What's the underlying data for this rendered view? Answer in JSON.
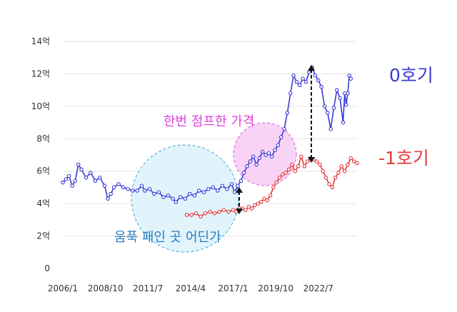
{
  "chart_data": {
    "type": "line",
    "ylim": [
      0,
      14
    ],
    "y_ticks": [
      {
        "value": 0,
        "label": "0"
      },
      {
        "value": 2,
        "label": "2억"
      },
      {
        "value": 4,
        "label": "4억"
      },
      {
        "value": 6,
        "label": "6억"
      },
      {
        "value": 8,
        "label": "8억"
      },
      {
        "value": 10,
        "label": "10억"
      },
      {
        "value": 12,
        "label": "12억"
      },
      {
        "value": 14,
        "label": "14억"
      }
    ],
    "x_range": [
      2006.0,
      2025.0
    ],
    "x_ticks": [
      {
        "value": 2006.0,
        "label": "2006/1"
      },
      {
        "value": 2008.75,
        "label": "2008/10"
      },
      {
        "value": 2011.5,
        "label": "2011/7"
      },
      {
        "value": 2014.25,
        "label": "2014/4"
      },
      {
        "value": 2017.0,
        "label": "2017/1"
      },
      {
        "value": 2019.75,
        "label": "2019/10"
      },
      {
        "value": 2022.5,
        "label": "2022/7"
      }
    ],
    "grid": "horizontal",
    "series": [
      {
        "name": "0호기",
        "color": "#3a3ad6",
        "points": [
          [
            2006.0,
            5.3
          ],
          [
            2006.2,
            5.5
          ],
          [
            2006.4,
            5.7
          ],
          [
            2006.6,
            5.1
          ],
          [
            2006.8,
            5.4
          ],
          [
            2007.0,
            6.4
          ],
          [
            2007.2,
            6.1
          ],
          [
            2007.5,
            5.6
          ],
          [
            2007.8,
            5.9
          ],
          [
            2008.1,
            5.4
          ],
          [
            2008.4,
            5.6
          ],
          [
            2008.7,
            5.1
          ],
          [
            2008.9,
            4.3
          ],
          [
            2009.1,
            4.6
          ],
          [
            2009.3,
            5.0
          ],
          [
            2009.6,
            5.2
          ],
          [
            2009.9,
            5.0
          ],
          [
            2010.2,
            4.9
          ],
          [
            2010.5,
            4.8
          ],
          [
            2010.8,
            4.8
          ],
          [
            2011.1,
            5.1
          ],
          [
            2011.3,
            4.8
          ],
          [
            2011.6,
            4.9
          ],
          [
            2011.9,
            4.6
          ],
          [
            2012.2,
            4.7
          ],
          [
            2012.5,
            4.4
          ],
          [
            2012.8,
            4.5
          ],
          [
            2013.1,
            4.3
          ],
          [
            2013.3,
            4.1
          ],
          [
            2013.6,
            4.4
          ],
          [
            2013.9,
            4.3
          ],
          [
            2014.2,
            4.6
          ],
          [
            2014.5,
            4.5
          ],
          [
            2014.8,
            4.8
          ],
          [
            2015.1,
            4.7
          ],
          [
            2015.4,
            4.9
          ],
          [
            2015.7,
            5.0
          ],
          [
            2016.0,
            4.8
          ],
          [
            2016.3,
            5.1
          ],
          [
            2016.6,
            4.9
          ],
          [
            2016.9,
            5.2
          ],
          [
            2017.1,
            4.7
          ],
          [
            2017.3,
            5.1
          ],
          [
            2017.5,
            5.4
          ],
          [
            2017.7,
            5.9
          ],
          [
            2017.9,
            6.3
          ],
          [
            2018.1,
            6.6
          ],
          [
            2018.3,
            6.9
          ],
          [
            2018.5,
            6.4
          ],
          [
            2018.7,
            6.8
          ],
          [
            2018.9,
            7.2
          ],
          [
            2019.1,
            7.0
          ],
          [
            2019.3,
            7.1
          ],
          [
            2019.5,
            6.9
          ],
          [
            2019.7,
            7.3
          ],
          [
            2019.9,
            7.6
          ],
          [
            2020.1,
            8.1
          ],
          [
            2020.3,
            8.6
          ],
          [
            2020.5,
            9.6
          ],
          [
            2020.7,
            10.8
          ],
          [
            2020.9,
            11.9
          ],
          [
            2021.1,
            11.5
          ],
          [
            2021.3,
            11.3
          ],
          [
            2021.5,
            11.7
          ],
          [
            2021.7,
            11.5
          ],
          [
            2021.9,
            12.1
          ],
          [
            2022.1,
            12.4
          ],
          [
            2022.3,
            11.9
          ],
          [
            2022.5,
            11.6
          ],
          [
            2022.7,
            11.2
          ],
          [
            2022.9,
            10.0
          ],
          [
            2023.1,
            9.6
          ],
          [
            2023.3,
            8.6
          ],
          [
            2023.5,
            9.9
          ],
          [
            2023.7,
            11.0
          ],
          [
            2023.9,
            10.5
          ],
          [
            2024.1,
            9.0
          ],
          [
            2024.2,
            10.8
          ],
          [
            2024.3,
            10.1
          ],
          [
            2024.4,
            10.8
          ],
          [
            2024.5,
            11.9
          ],
          [
            2024.6,
            11.7
          ]
        ]
      },
      {
        "name": "-1호기",
        "color": "#e23b3b",
        "points": [
          [
            2014.0,
            3.3
          ],
          [
            2014.3,
            3.3
          ],
          [
            2014.6,
            3.4
          ],
          [
            2014.9,
            3.2
          ],
          [
            2015.2,
            3.4
          ],
          [
            2015.5,
            3.5
          ],
          [
            2015.8,
            3.4
          ],
          [
            2016.1,
            3.5
          ],
          [
            2016.4,
            3.6
          ],
          [
            2016.7,
            3.5
          ],
          [
            2017.0,
            3.6
          ],
          [
            2017.2,
            3.5
          ],
          [
            2017.4,
            3.7
          ],
          [
            2017.6,
            3.7
          ],
          [
            2017.8,
            3.6
          ],
          [
            2018.0,
            3.8
          ],
          [
            2018.2,
            3.7
          ],
          [
            2018.4,
            3.9
          ],
          [
            2018.6,
            4.0
          ],
          [
            2018.8,
            4.1
          ],
          [
            2019.0,
            4.3
          ],
          [
            2019.2,
            4.2
          ],
          [
            2019.4,
            4.5
          ],
          [
            2019.6,
            5.0
          ],
          [
            2019.8,
            5.3
          ],
          [
            2020.0,
            5.6
          ],
          [
            2020.2,
            5.8
          ],
          [
            2020.4,
            5.9
          ],
          [
            2020.6,
            6.1
          ],
          [
            2020.8,
            6.4
          ],
          [
            2021.0,
            6.0
          ],
          [
            2021.2,
            6.3
          ],
          [
            2021.4,
            6.9
          ],
          [
            2021.6,
            6.3
          ],
          [
            2021.8,
            6.6
          ],
          [
            2022.0,
            6.8
          ],
          [
            2022.2,
            6.7
          ],
          [
            2022.4,
            6.6
          ],
          [
            2022.6,
            6.4
          ],
          [
            2022.8,
            6.0
          ],
          [
            2023.0,
            5.6
          ],
          [
            2023.2,
            5.2
          ],
          [
            2023.4,
            5.0
          ],
          [
            2023.6,
            5.6
          ],
          [
            2023.8,
            5.9
          ],
          [
            2024.0,
            6.3
          ],
          [
            2024.2,
            6.0
          ],
          [
            2024.4,
            6.4
          ],
          [
            2024.6,
            6.8
          ],
          [
            2024.8,
            6.6
          ],
          [
            2025.0,
            6.5
          ]
        ]
      }
    ],
    "annotations": {
      "jump_label": "한번 점프한 가격",
      "dip_label": "움푹 패인 곳 어딘가",
      "jump_color": "#e040e0",
      "dip_color": "#2a7bbf",
      "jump_fill": "#f6c8f2",
      "dip_fill": "#d7f0fb"
    }
  },
  "series_labels": {
    "zero": "0호기",
    "minus_one": "-1호기"
  }
}
